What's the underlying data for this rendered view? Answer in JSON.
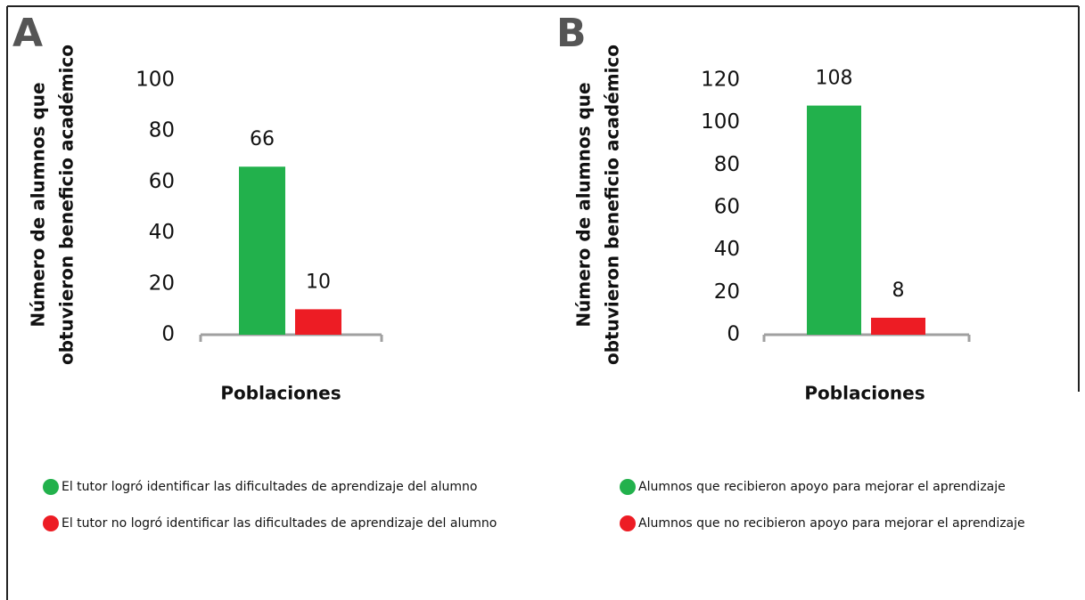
{
  "chart_data": [
    {
      "type": "bar",
      "panel": "A",
      "ylabel": [
        "Número de alumnos que",
        "obtuvieron beneficio académico"
      ],
      "xlabel": "Poblaciones",
      "series": [
        {
          "name": "El tutor logró identificar las dificultades de aprendizaje del alumno",
          "color": "#22b14c",
          "values": [
            66
          ]
        },
        {
          "name": "El tutor no logró identificar las dificultades de aprendizaje del alumno",
          "color": "#ed1c24",
          "values": [
            10
          ]
        }
      ],
      "ylim": [
        0,
        100
      ],
      "yticks": [
        0,
        20,
        40,
        60,
        80,
        100
      ]
    },
    {
      "type": "bar",
      "panel": "B",
      "ylabel": [
        "Número de alumnos que",
        "obtuvieron beneficio académico"
      ],
      "xlabel": "Poblaciones",
      "series": [
        {
          "name": "Alumnos que recibieron apoyo para mejorar el aprendizaje",
          "color": "#22b14c",
          "values": [
            108
          ]
        },
        {
          "name": "Alumnos que no recibieron apoyo para mejorar el aprendizaje",
          "color": "#ed1c24",
          "values": [
            8
          ]
        }
      ],
      "ylim": [
        0,
        120
      ],
      "yticks": [
        0,
        20,
        40,
        60,
        80,
        100,
        120
      ]
    }
  ]
}
